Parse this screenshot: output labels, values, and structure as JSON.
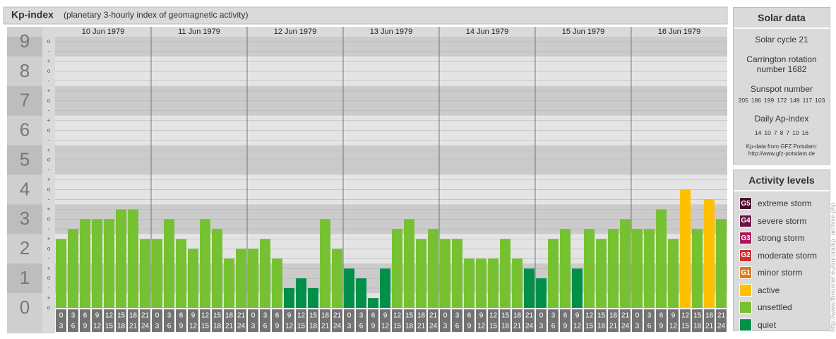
{
  "chart_data": {
    "type": "bar",
    "title": "Kp-index",
    "subtitle": "(planetary 3-hourly index of geomagnetic activity)",
    "days": [
      {
        "date": "10 Jun 1979",
        "values": [
          2.33,
          2.67,
          3,
          3,
          3,
          3.33,
          3.33,
          2.33
        ],
        "colors": [
          "#76c131",
          "#76c131",
          "#76c131",
          "#76c131",
          "#76c131",
          "#76c131",
          "#76c131",
          "#76c131"
        ]
      },
      {
        "date": "11 Jun 1979",
        "values": [
          2.33,
          3,
          2.33,
          2,
          3,
          2.67,
          1.67,
          2
        ],
        "colors": [
          "#76c131",
          "#76c131",
          "#76c131",
          "#76c131",
          "#76c131",
          "#76c131",
          "#76c131",
          "#76c131"
        ]
      },
      {
        "date": "12 Jun 1979",
        "values": [
          2,
          2.33,
          1.67,
          0.67,
          1,
          0.67,
          3,
          2
        ],
        "colors": [
          "#76c131",
          "#76c131",
          "#76c131",
          "#00904a",
          "#00904a",
          "#00904a",
          "#76c131",
          "#76c131"
        ]
      },
      {
        "date": "13 Jun 1979",
        "values": [
          1.33,
          1,
          0.33,
          1.33,
          2.67,
          3,
          2.33,
          2.67
        ],
        "colors": [
          "#00904a",
          "#00904a",
          "#00904a",
          "#00904a",
          "#76c131",
          "#76c131",
          "#76c131",
          "#76c131"
        ]
      },
      {
        "date": "14 Jun 1979",
        "values": [
          2.33,
          2.33,
          1.67,
          1.67,
          1.67,
          2.33,
          1.67,
          1.33
        ],
        "colors": [
          "#76c131",
          "#76c131",
          "#76c131",
          "#76c131",
          "#76c131",
          "#76c131",
          "#76c131",
          "#00904a"
        ]
      },
      {
        "date": "15 Jun 1979",
        "values": [
          1,
          2.33,
          2.67,
          1.33,
          2.67,
          2.33,
          2.67,
          3
        ],
        "colors": [
          "#00904a",
          "#76c131",
          "#76c131",
          "#00904a",
          "#76c131",
          "#76c131",
          "#76c131",
          "#76c131"
        ]
      },
      {
        "date": "16 Jun 1979",
        "values": [
          2.67,
          2.67,
          3.33,
          2.33,
          4,
          2.67,
          3.67,
          3
        ],
        "colors": [
          "#76c131",
          "#76c131",
          "#76c131",
          "#76c131",
          "#ffc000",
          "#76c131",
          "#ffc000",
          "#76c131"
        ]
      }
    ],
    "hour_labels": [
      {
        "start": "0",
        "end": "3"
      },
      {
        "start": "3",
        "end": "6"
      },
      {
        "start": "6",
        "end": "9"
      },
      {
        "start": "9",
        "end": "12"
      },
      {
        "start": "12",
        "end": "15"
      },
      {
        "start": "15",
        "end": "18"
      },
      {
        "start": "18",
        "end": "21"
      },
      {
        "start": "21",
        "end": "24"
      }
    ],
    "ylim": [
      0,
      9
    ],
    "ymajor": [
      0,
      1,
      2,
      3,
      4,
      5,
      6,
      7,
      8,
      9
    ],
    "yticks": [
      {
        "value": 0,
        "label": "o"
      },
      {
        "value": 0.33,
        "label": "+"
      },
      {
        "value": 0.67,
        "label": "-"
      },
      {
        "value": 1,
        "label": "o"
      },
      {
        "value": 1.33,
        "label": "+"
      },
      {
        "value": 1.67,
        "label": "-"
      },
      {
        "value": 2,
        "label": "o"
      },
      {
        "value": 2.33,
        "label": "+"
      },
      {
        "value": 2.67,
        "label": "-"
      },
      {
        "value": 3,
        "label": "o"
      },
      {
        "value": 3.33,
        "label": "+"
      },
      {
        "value": 3.67,
        "label": "-"
      },
      {
        "value": 4,
        "label": "o"
      },
      {
        "value": 4.33,
        "label": "+"
      },
      {
        "value": 4.67,
        "label": "-"
      },
      {
        "value": 5,
        "label": "o"
      },
      {
        "value": 5.33,
        "label": "+"
      },
      {
        "value": 5.67,
        "label": "-"
      },
      {
        "value": 6,
        "label": "o"
      },
      {
        "value": 6.33,
        "label": "+"
      },
      {
        "value": 6.67,
        "label": "-"
      },
      {
        "value": 7,
        "label": "o"
      },
      {
        "value": 7.33,
        "label": "+"
      },
      {
        "value": 7.67,
        "label": "-"
      },
      {
        "value": 8,
        "label": "o"
      },
      {
        "value": 8.33,
        "label": "+"
      },
      {
        "value": 8.67,
        "label": "-"
      },
      {
        "value": 9,
        "label": "o"
      }
    ],
    "grid": true
  },
  "solar_data": {
    "title": "Solar data",
    "cycle": "Solar cycle 21",
    "carrington": "Carrington rotation number 1682",
    "sunspot_label": "Sunspot number",
    "sunspot": [
      205,
      186,
      199,
      172,
      149,
      117,
      103
    ],
    "ap_label": "Daily Ap-index",
    "ap": [
      14,
      10,
      7,
      8,
      7,
      10,
      16
    ],
    "source": "Kp-data from GFZ Potsdam:",
    "source_url": "http://www.gfz-potsdam.de"
  },
  "legend": {
    "title": "Activity levels",
    "items": [
      {
        "code": "G5",
        "name": "extreme storm",
        "color": "#4a0a2a"
      },
      {
        "code": "G4",
        "name": "severe storm",
        "color": "#6e1245"
      },
      {
        "code": "G3",
        "name": "strong storm",
        "color": "#a8195a"
      },
      {
        "code": "G2",
        "name": "moderate storm",
        "color": "#cf2e2e"
      },
      {
        "code": "G1",
        "name": "minor storm",
        "color": "#e07a1f"
      },
      {
        "name": "active",
        "color": "#ffc000"
      },
      {
        "name": "unsettled",
        "color": "#76c131"
      },
      {
        "name": "quiet",
        "color": "#00904a"
      }
    ]
  },
  "credit": "http://www.theusner.eu/aurora/kp_archive.php"
}
